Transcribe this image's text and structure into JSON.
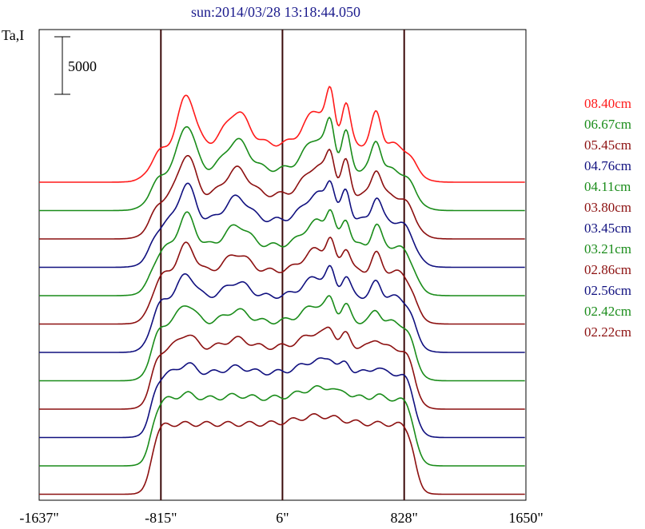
{
  "chart_data": {
    "type": "line",
    "title": "sun:2014/03/28 13:18:44.050",
    "title_color": "#1a1a8c",
    "ylabel": "Ta,I",
    "scale_bar_label": "5000",
    "scale_bar_value": 5000,
    "x_ticks": [
      -1637,
      -815,
      6,
      828,
      1650
    ],
    "x_tick_labels": [
      "-1637\"",
      "-815\"",
      "6\"",
      "828\"",
      "1650\""
    ],
    "xlim": [
      -1637,
      1650
    ],
    "vertical_markers": [
      -815,
      6,
      828
    ],
    "marker_color": "#3a0a0a",
    "grid": false,
    "legend_position": "right",
    "series": [
      {
        "name": "08.40cm",
        "color": "#ff1a1a"
      },
      {
        "name": "06.67cm",
        "color": "#1a8c1a"
      },
      {
        "name": "05.45cm",
        "color": "#8c1010"
      },
      {
        "name": "04.76cm",
        "color": "#10107f"
      },
      {
        "name": "04.11cm",
        "color": "#1a8c1a"
      },
      {
        "name": "03.80cm",
        "color": "#8c1010"
      },
      {
        "name": "03.45cm",
        "color": "#10107f"
      },
      {
        "name": "03.21cm",
        "color": "#1a8c1a"
      },
      {
        "name": "02.86cm",
        "color": "#8c1010"
      },
      {
        "name": "02.56cm",
        "color": "#10107f"
      },
      {
        "name": "02.42cm",
        "color": "#1a8c1a"
      },
      {
        "name": "02.22cm",
        "color": "#8c1010"
      }
    ]
  }
}
